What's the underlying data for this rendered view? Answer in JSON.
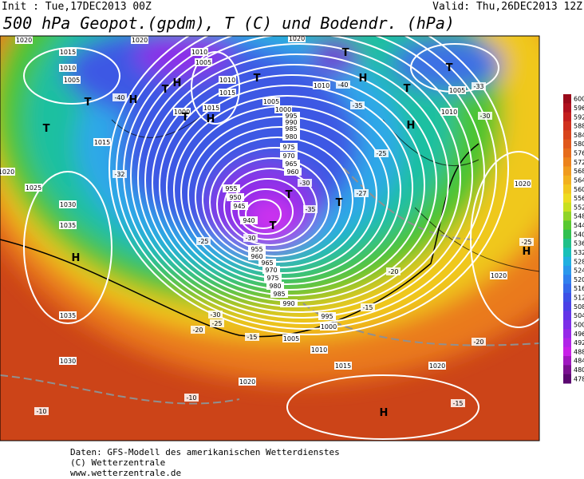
{
  "header": {
    "init": "Init : Tue,17DEC2013 00Z",
    "valid": "Valid: Thu,26DEC2013 12Z",
    "title": "500 hPa Geopot.(gpdm), T (C) und Bodendr. (hPa)"
  },
  "legend": {
    "labels": [
      "600",
      "596",
      "592",
      "588",
      "584",
      "580",
      "576",
      "572",
      "568",
      "564",
      "560",
      "556",
      "552",
      "548",
      "544",
      "540",
      "536",
      "532",
      "528",
      "524",
      "520",
      "516",
      "512",
      "508",
      "504",
      "500",
      "496",
      "492",
      "488",
      "484",
      "480",
      "478"
    ]
  },
  "map": {
    "isobar_labels": [
      "1020",
      "1015",
      "1010",
      "1005",
      "1010",
      "1005",
      "1010",
      "1015",
      "1000",
      "1015",
      "1005",
      "1000",
      "995",
      "990",
      "985",
      "980",
      "975",
      "970",
      "965",
      "960",
      "955",
      "950",
      "945",
      "940",
      "955",
      "960",
      "965",
      "970",
      "975",
      "980",
      "985",
      "990",
      "995",
      "1000",
      "1005",
      "1010",
      "1015",
      "1020",
      "1025",
      "1030",
      "1035",
      "1035",
      "1030",
      "1010",
      "1005",
      "1010",
      "1020",
      "1020",
      "1020",
      "1015",
      "1020",
      "1020",
      "1020"
    ],
    "temperature_labels": [
      "-40",
      "-40",
      "-35",
      "-30",
      "-33",
      "-25",
      "-25",
      "-32",
      "-30",
      "-35",
      "-25",
      "-30",
      "-30",
      "-25",
      "-20",
      "-15",
      "-27",
      "-20",
      "-15",
      "-20",
      "-15",
      "-10",
      "-10"
    ],
    "pressure_centers": [
      "T",
      "H",
      "T",
      "H",
      "T",
      "H",
      "T",
      "H",
      "T",
      "T",
      "H",
      "T",
      "T",
      "T",
      "T",
      "H",
      "H",
      "H",
      "T"
    ]
  },
  "footer": {
    "lines": [
      "Daten: GFS-Modell des amerikanischen Wetterdienstes",
      "(C) Wetterzentrale",
      "www.wetterzentrale.de"
    ]
  }
}
